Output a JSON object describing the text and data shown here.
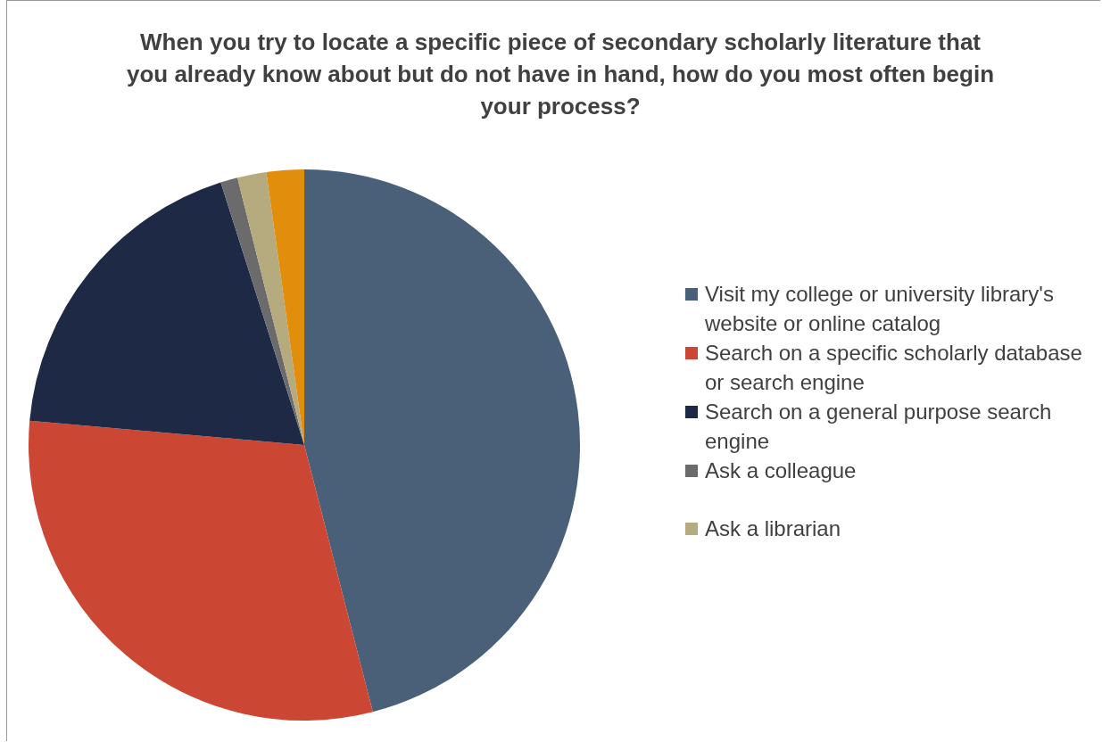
{
  "chart_data": {
    "type": "pie",
    "title": "When you try to locate a specific piece of secondary scholarly literature that you already know about but do not have in hand, how do you most often begin your process?",
    "categories": [
      "Visit my college or university library's website or online catalog",
      "Search on a specific scholarly database or search engine",
      "Search on a general purpose search engine",
      "Ask a colleague",
      "Ask a librarian",
      null
    ],
    "values": [
      46.0,
      30.4,
      18.7,
      1.0,
      1.7,
      2.2
    ],
    "colors": [
      "#4a6078",
      "#cc4634",
      "#1e2a45",
      "#6b6b6b",
      "#b5ab7f",
      "#e08e0b"
    ],
    "legend": "right"
  }
}
